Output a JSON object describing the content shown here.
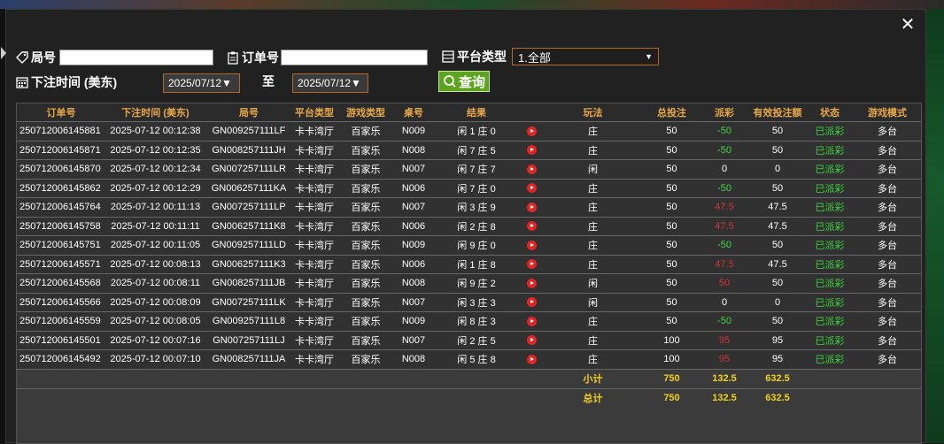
{
  "filters": {
    "order_id_label": "局号",
    "order_no_label": "订单号",
    "platform_label": "平台类型",
    "platform_value": "1.全部",
    "time_label": "下注时间 (美东)",
    "date_from": "2025/07/12▼",
    "date_sep": "至",
    "date_to": "2025/07/12▼",
    "query_label": "查询"
  },
  "table": {
    "headers": [
      "订单号",
      "下注时间 (美东)",
      "局号",
      "平台类型",
      "游戏类型",
      "桌号",
      "结果",
      "",
      "玩法",
      "总投注",
      "派彩",
      "有效投注额",
      "状态",
      "游戏模式"
    ],
    "rows": [
      {
        "order": "250712006145881",
        "time": "2025-07-12 00:12:38",
        "round": "GN009257111LF",
        "platform": "卡卡湾厅",
        "game": "百家乐",
        "table": "N009",
        "result": "闲 1 庄 0",
        "play": "庄",
        "bet": "50",
        "payout": "-50",
        "payout_type": "pos",
        "valid": "50",
        "status": "已派彩",
        "mode": "多台"
      },
      {
        "order": "250712006145871",
        "time": "2025-07-12 00:12:35",
        "round": "GN008257111JH",
        "platform": "卡卡湾厅",
        "game": "百家乐",
        "table": "N008",
        "result": "闲 7 庄 5",
        "play": "庄",
        "bet": "50",
        "payout": "-50",
        "payout_type": "pos",
        "valid": "50",
        "status": "已派彩",
        "mode": "多台"
      },
      {
        "order": "250712006145870",
        "time": "2025-07-12 00:12:34",
        "round": "GN007257111LR",
        "platform": "卡卡湾厅",
        "game": "百家乐",
        "table": "N007",
        "result": "闲 7 庄 7",
        "play": "闲",
        "bet": "50",
        "payout": "0",
        "payout_type": "zero",
        "valid": "0",
        "status": "已派彩",
        "mode": "多台"
      },
      {
        "order": "250712006145862",
        "time": "2025-07-12 00:12:29",
        "round": "GN006257111KA",
        "platform": "卡卡湾厅",
        "game": "百家乐",
        "table": "N006",
        "result": "闲 7 庄 0",
        "play": "庄",
        "bet": "50",
        "payout": "-50",
        "payout_type": "pos",
        "valid": "50",
        "status": "已派彩",
        "mode": "多台"
      },
      {
        "order": "250712006145764",
        "time": "2025-07-12 00:11:13",
        "round": "GN007257111LP",
        "platform": "卡卡湾厅",
        "game": "百家乐",
        "table": "N007",
        "result": "闲 3 庄 9",
        "play": "庄",
        "bet": "50",
        "payout": "47.5",
        "payout_type": "neg",
        "valid": "47.5",
        "status": "已派彩",
        "mode": "多台"
      },
      {
        "order": "250712006145758",
        "time": "2025-07-12 00:11:11",
        "round": "GN006257111K8",
        "platform": "卡卡湾厅",
        "game": "百家乐",
        "table": "N006",
        "result": "闲 2 庄 8",
        "play": "庄",
        "bet": "50",
        "payout": "47.5",
        "payout_type": "neg",
        "valid": "47.5",
        "status": "已派彩",
        "mode": "多台"
      },
      {
        "order": "250712006145751",
        "time": "2025-07-12 00:11:05",
        "round": "GN009257111LD",
        "platform": "卡卡湾厅",
        "game": "百家乐",
        "table": "N009",
        "result": "闲 9 庄 0",
        "play": "庄",
        "bet": "50",
        "payout": "-50",
        "payout_type": "pos",
        "valid": "50",
        "status": "已派彩",
        "mode": "多台"
      },
      {
        "order": "250712006145571",
        "time": "2025-07-12 00:08:13",
        "round": "GN006257111K3",
        "platform": "卡卡湾厅",
        "game": "百家乐",
        "table": "N006",
        "result": "闲 1 庄 8",
        "play": "庄",
        "bet": "50",
        "payout": "47.5",
        "payout_type": "neg",
        "valid": "47.5",
        "status": "已派彩",
        "mode": "多台"
      },
      {
        "order": "250712006145568",
        "time": "2025-07-12 00:08:11",
        "round": "GN008257111JB",
        "platform": "卡卡湾厅",
        "game": "百家乐",
        "table": "N008",
        "result": "闲 9 庄 2",
        "play": "闲",
        "bet": "50",
        "payout": "50",
        "payout_type": "neg",
        "valid": "50",
        "status": "已派彩",
        "mode": "多台"
      },
      {
        "order": "250712006145566",
        "time": "2025-07-12 00:08:09",
        "round": "GN007257111LK",
        "platform": "卡卡湾厅",
        "game": "百家乐",
        "table": "N007",
        "result": "闲 3 庄 3",
        "play": "闲",
        "bet": "50",
        "payout": "0",
        "payout_type": "zero",
        "valid": "0",
        "status": "已派彩",
        "mode": "多台"
      },
      {
        "order": "250712006145559",
        "time": "2025-07-12 00:08:05",
        "round": "GN009257111L8",
        "platform": "卡卡湾厅",
        "game": "百家乐",
        "table": "N009",
        "result": "闲 8 庄 3",
        "play": "庄",
        "bet": "50",
        "payout": "-50",
        "payout_type": "pos",
        "valid": "50",
        "status": "已派彩",
        "mode": "多台"
      },
      {
        "order": "250712006145501",
        "time": "2025-07-12 00:07:16",
        "round": "GN007257111LJ",
        "platform": "卡卡湾厅",
        "game": "百家乐",
        "table": "N007",
        "result": "闲 2 庄 5",
        "play": "庄",
        "bet": "100",
        "payout": "95",
        "payout_type": "neg",
        "valid": "95",
        "status": "已派彩",
        "mode": "多台"
      },
      {
        "order": "250712006145492",
        "time": "2025-07-12 00:07:10",
        "round": "GN008257111JA",
        "platform": "卡卡湾厅",
        "game": "百家乐",
        "table": "N008",
        "result": "闲 5 庄 8",
        "play": "庄",
        "bet": "100",
        "payout": "95",
        "payout_type": "neg",
        "valid": "95",
        "status": "已派彩",
        "mode": "多台"
      }
    ],
    "subtotal": {
      "label": "小计",
      "bet": "750",
      "payout": "132.5",
      "valid": "632.5"
    },
    "total": {
      "label": "总计",
      "bet": "750",
      "payout": "132.5",
      "valid": "632.5"
    }
  },
  "colors": {
    "header_text": "#e8a84a",
    "positive": "#45d645",
    "negative": "#d03535",
    "status": "#3bd33b",
    "summary": "#f1d01f",
    "accent_border": "#b36a1f",
    "query_button": "#5aa41e"
  },
  "icons": [
    "tag-icon",
    "clipboard-icon",
    "list-icon",
    "calendar-icon",
    "search-icon",
    "play-icon",
    "close-icon"
  ]
}
